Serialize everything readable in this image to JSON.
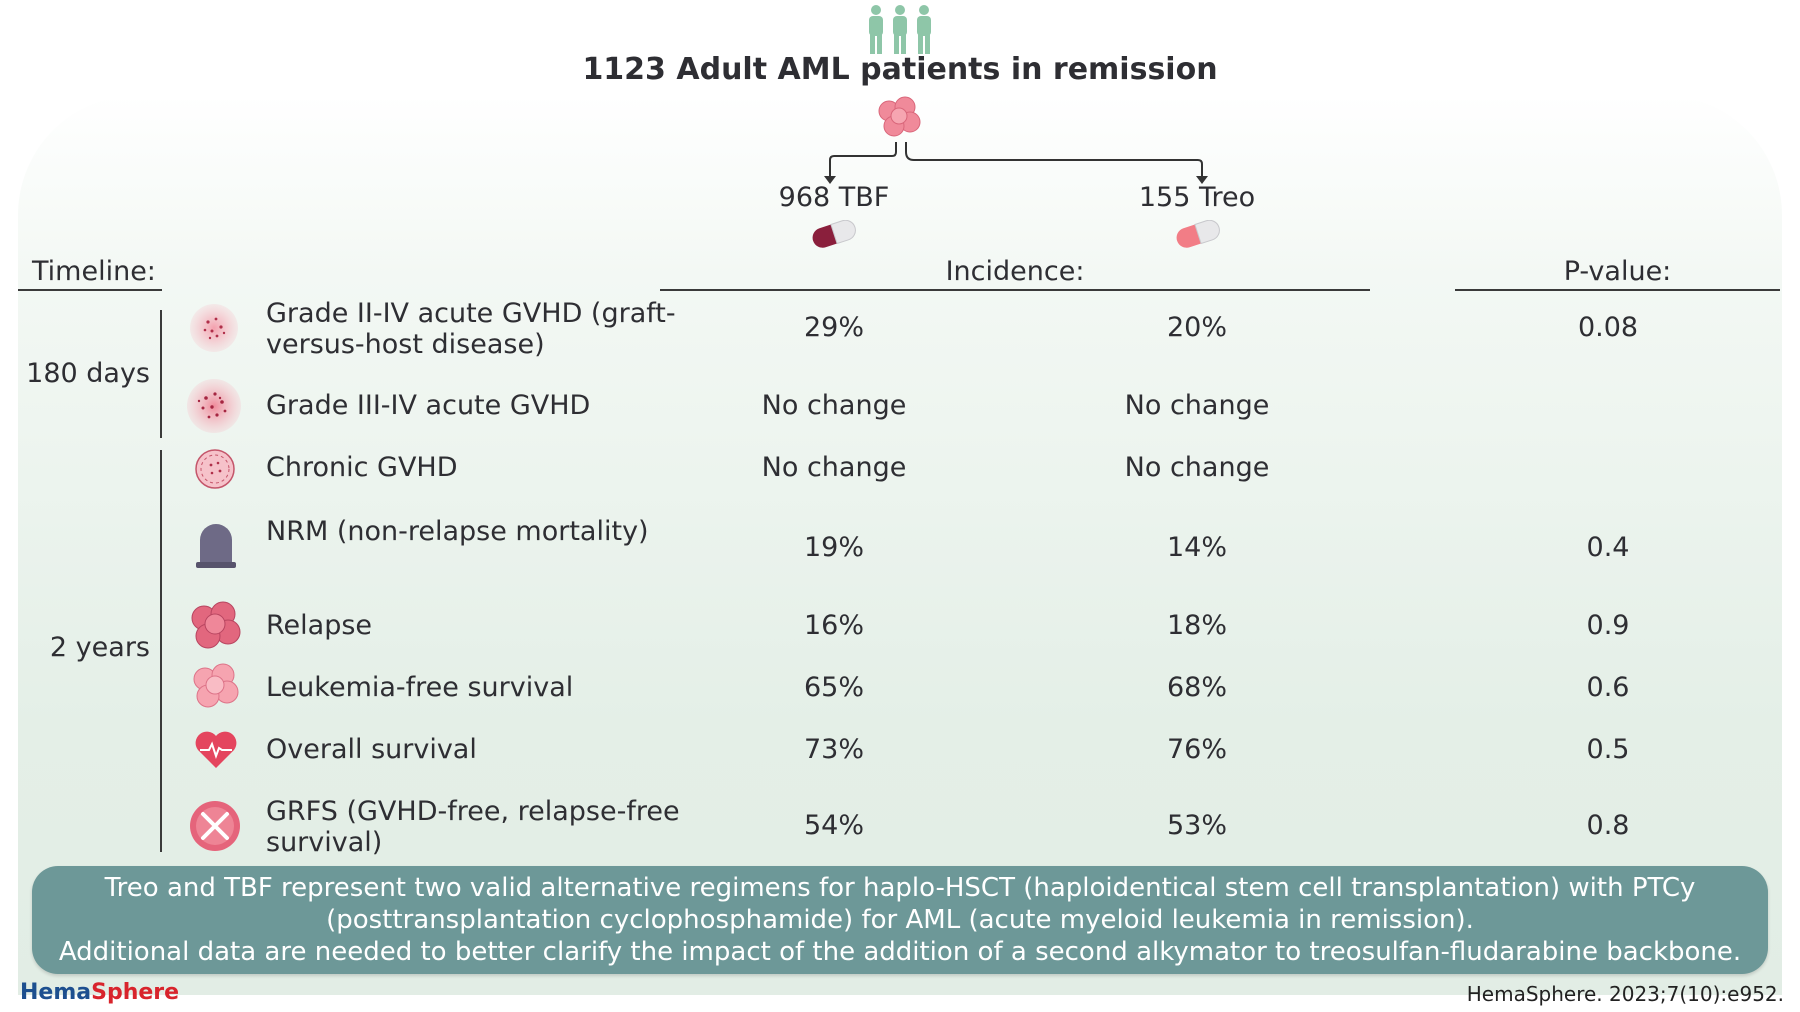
{
  "title": "1123 Adult AML patients in remission",
  "arms": {
    "tbf": "968 TBF",
    "treo": "155 Treo"
  },
  "headers": {
    "timeline": "Timeline:",
    "incidence": "Incidence:",
    "pvalue": "P-value:"
  },
  "periods": {
    "p180": "180 days",
    "p2y": "2 years"
  },
  "rows": [
    {
      "outcome": "Grade II-IV acute GVHD (graft-versus-host disease)",
      "tbf": "29%",
      "treo": "20%",
      "p": "0.08",
      "icon": "gvhd-cell-icon"
    },
    {
      "outcome": "Grade III-IV acute GVHD",
      "tbf": "No change",
      "treo": "No change",
      "p": "",
      "icon": "gvhd-cell-icon"
    },
    {
      "outcome": "Chronic GVHD",
      "tbf": "No change",
      "treo": "No change",
      "p": "",
      "icon": "chronic-gvhd-icon"
    },
    {
      "outcome": "NRM (non-relapse mortality)",
      "tbf": "19%",
      "treo": "14%",
      "p": "0.4",
      "icon": "tombstone-icon"
    },
    {
      "outcome": "Relapse",
      "tbf": "16%",
      "treo": "18%",
      "p": "0.9",
      "icon": "leukemia-cells-icon"
    },
    {
      "outcome": "Leukemia-free survival",
      "tbf": "65%",
      "treo": "68%",
      "p": "0.6",
      "icon": "cell-cluster-icon"
    },
    {
      "outcome": "Overall survival",
      "tbf": "73%",
      "treo": "76%",
      "p": "0.5",
      "icon": "heart-icon"
    },
    {
      "outcome": "GRFS (GVHD-free, relapse-free survival)",
      "tbf": "54%",
      "treo": "53%",
      "p": "0.8",
      "icon": "crossed-cell-icon"
    }
  ],
  "summary": {
    "line1": "Treo and TBF represent two valid alternative regimens for haplo-HSCT (haploidentical stem cell transplantation) with PTCy",
    "line2": "(posttransplantation cyclophosphamide) for AML (acute myeloid leukemia in remission).",
    "line3": "Additional data are needed to better clarify the impact of the addition of a second alkymator to treosulfan-fludarabine backbone."
  },
  "footer": {
    "brand_hema": "Hema",
    "brand_sphere": "Sphere",
    "citation": "HemaSphere. 2023;7(10):e952."
  },
  "colors": {
    "people": "#8ec6a8",
    "cell_pink": "#f08a9a",
    "pill_tbf": "#8a1f3c",
    "pill_treo": "#f27d86",
    "summary_box": "#6d9898",
    "brand_blue": "#1d4f8f",
    "brand_red": "#d8242c"
  }
}
